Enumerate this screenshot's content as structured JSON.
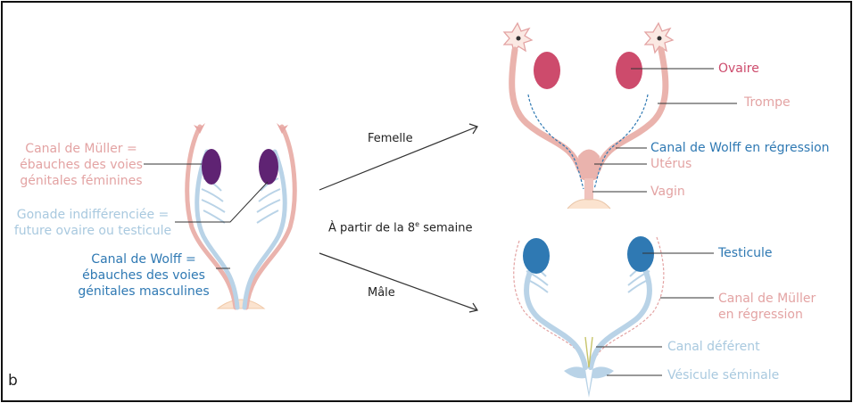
{
  "panel_letter": "b",
  "colors": {
    "pink": "#e3a3a3",
    "rose": "#cd4b6c",
    "blue": "#2f79b3",
    "light_blue": "#a9c9df",
    "purple": "#5f2373",
    "text": "#222222"
  },
  "left": {
    "muller_line1": "Canal de Müller =",
    "muller_line2": "ébauches des voies",
    "muller_line3": "génitales féminines",
    "gonade_line1": "Gonade indifférenciée =",
    "gonade_line2": "future ovaire ou testicule",
    "wolff_line1": "Canal de Wolff =",
    "wolff_line2": "ébauches des voies",
    "wolff_line3": "génitales masculines"
  },
  "middle": {
    "female_arrow_label": "Femelle",
    "male_arrow_label": "Mâle",
    "timing_main": "À partir de la 8",
    "timing_sup": "e",
    "timing_end": " semaine"
  },
  "female": {
    "ovaire": "Ovaire",
    "trompe": "Trompe",
    "wolff_regression": "Canal de Wolff en régression",
    "uterus": "Utérus",
    "vagin": "Vagin"
  },
  "male": {
    "testicule": "Testicule",
    "muller_regression_line1": "Canal de Müller",
    "muller_regression_line2": "en régression",
    "canal_deferent": "Canal déférent",
    "vesicule": "Vésicule séminale"
  }
}
